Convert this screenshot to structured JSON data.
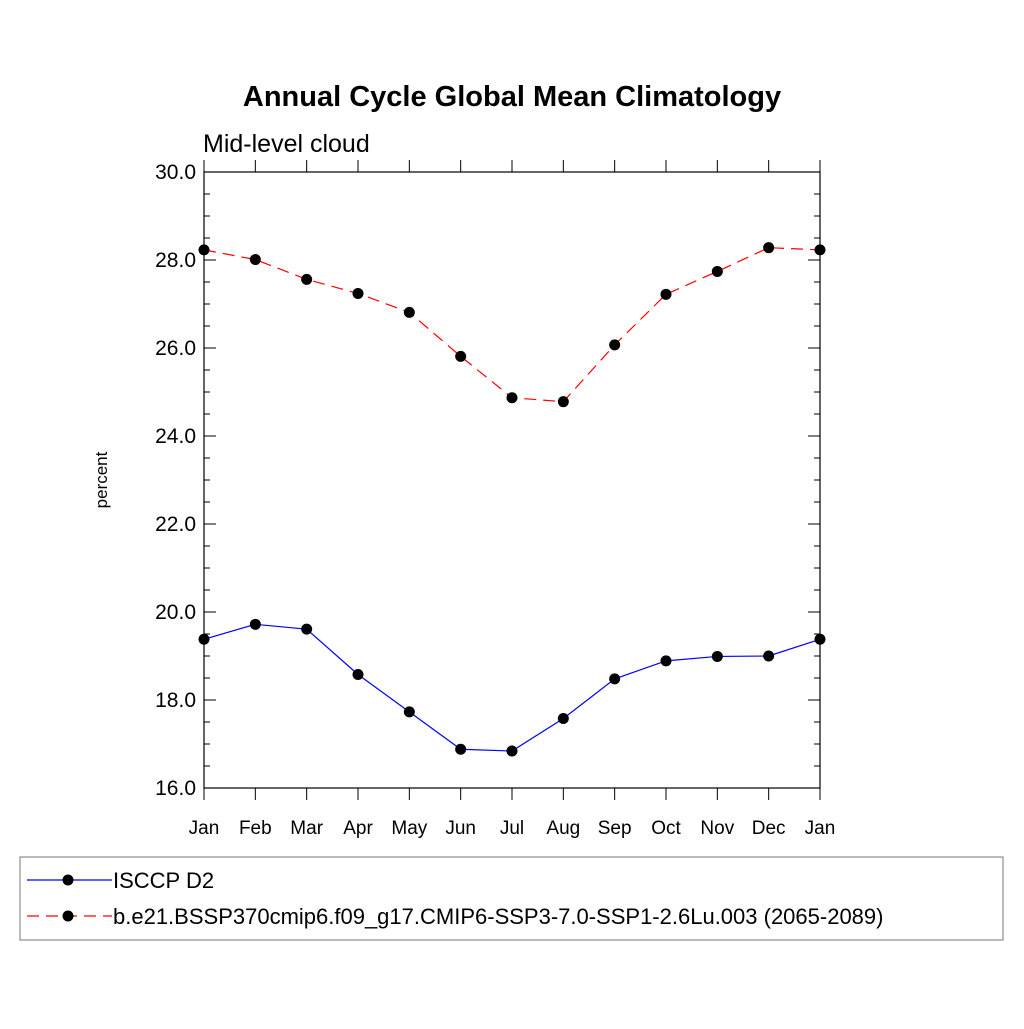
{
  "chart_data": {
    "type": "line",
    "title": "Annual Cycle Global Mean Climatology",
    "subtitle": "Mid-level cloud",
    "xlabel": "",
    "ylabel": "percent",
    "categories": [
      "Jan",
      "Feb",
      "Mar",
      "Apr",
      "May",
      "Jun",
      "Jul",
      "Aug",
      "Sep",
      "Oct",
      "Nov",
      "Dec",
      "Jan"
    ],
    "ylim": [
      16.0,
      30.0
    ],
    "yticks": [
      "16.0",
      "18.0",
      "20.0",
      "22.0",
      "24.0",
      "26.0",
      "28.0",
      "30.0"
    ],
    "grid": false,
    "legend_position": "bottom",
    "series": [
      {
        "name": "ISCCP D2",
        "color": "#0000ff",
        "dashed": false,
        "values": [
          19.38,
          19.72,
          19.61,
          18.58,
          17.73,
          16.88,
          16.84,
          17.58,
          18.48,
          18.89,
          18.99,
          19.0,
          19.38
        ]
      },
      {
        "name": "b.e21.BSSP370cmip6.f09_g17.CMIP6-SSP3-7.0-SSP1-2.6Lu.003 (2065-2089)",
        "color": "#ff0000",
        "dashed": true,
        "values": [
          28.23,
          28.01,
          27.56,
          27.24,
          26.81,
          25.81,
          24.87,
          24.78,
          26.07,
          27.22,
          27.74,
          28.28,
          28.23
        ]
      }
    ]
  }
}
